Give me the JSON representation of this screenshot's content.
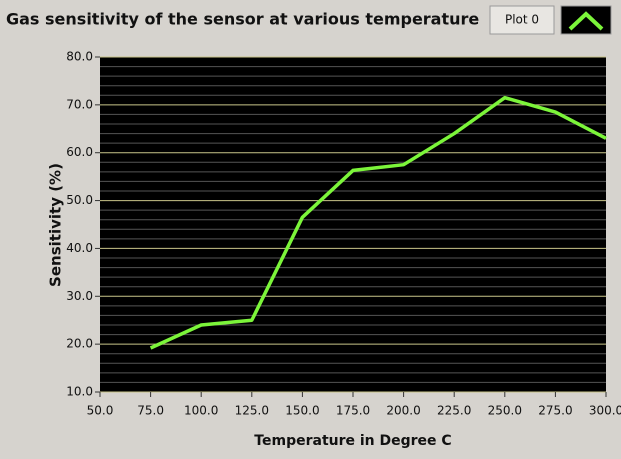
{
  "chart_data": {
    "type": "line",
    "title": "Gas sensitivity of the sensor at various temperature",
    "x_label": "Temperature in Degree C",
    "y_label": "Sensitivity (%)",
    "x": [
      75,
      100,
      125,
      150,
      175,
      200,
      225,
      250,
      275,
      300
    ],
    "series": [
      {
        "name": "Plot 0",
        "color": "#7cf53a",
        "values": [
          19.2,
          24.0,
          25.0,
          46.5,
          56.3,
          57.5,
          64.0,
          71.5,
          68.5,
          63.0
        ]
      }
    ],
    "xlim": [
      50,
      300
    ],
    "xticks": [
      {
        "value": 50,
        "label": "50.0"
      },
      {
        "value": 75,
        "label": "75.0"
      },
      {
        "value": 100,
        "label": "100.0"
      },
      {
        "value": 125,
        "label": "125.0"
      },
      {
        "value": 150,
        "label": "150.0"
      },
      {
        "value": 175,
        "label": "175.0"
      },
      {
        "value": 200,
        "label": "200.0"
      },
      {
        "value": 225,
        "label": "225.0"
      },
      {
        "value": 250,
        "label": "250.0"
      },
      {
        "value": 275,
        "label": "275.0"
      },
      {
        "value": 300,
        "label": "300.0"
      }
    ],
    "ylim": [
      10,
      80
    ],
    "yticks": [
      {
        "value": 10,
        "label": "10.0"
      },
      {
        "value": 20,
        "label": "20.0"
      },
      {
        "value": 30,
        "label": "30.0"
      },
      {
        "value": 40,
        "label": "40.0"
      },
      {
        "value": 50,
        "label": "50.0"
      },
      {
        "value": 60,
        "label": "60.0"
      },
      {
        "value": 70,
        "label": "70.0"
      },
      {
        "value": 80,
        "label": "80.0"
      }
    ],
    "y_minor_grid": [
      12,
      14,
      16,
      18,
      22,
      24,
      26,
      28,
      32,
      34,
      36,
      38,
      42,
      44,
      46,
      48,
      52,
      54,
      56,
      58,
      62,
      64,
      66,
      68,
      72,
      74,
      76,
      78
    ],
    "grid": true
  }
}
